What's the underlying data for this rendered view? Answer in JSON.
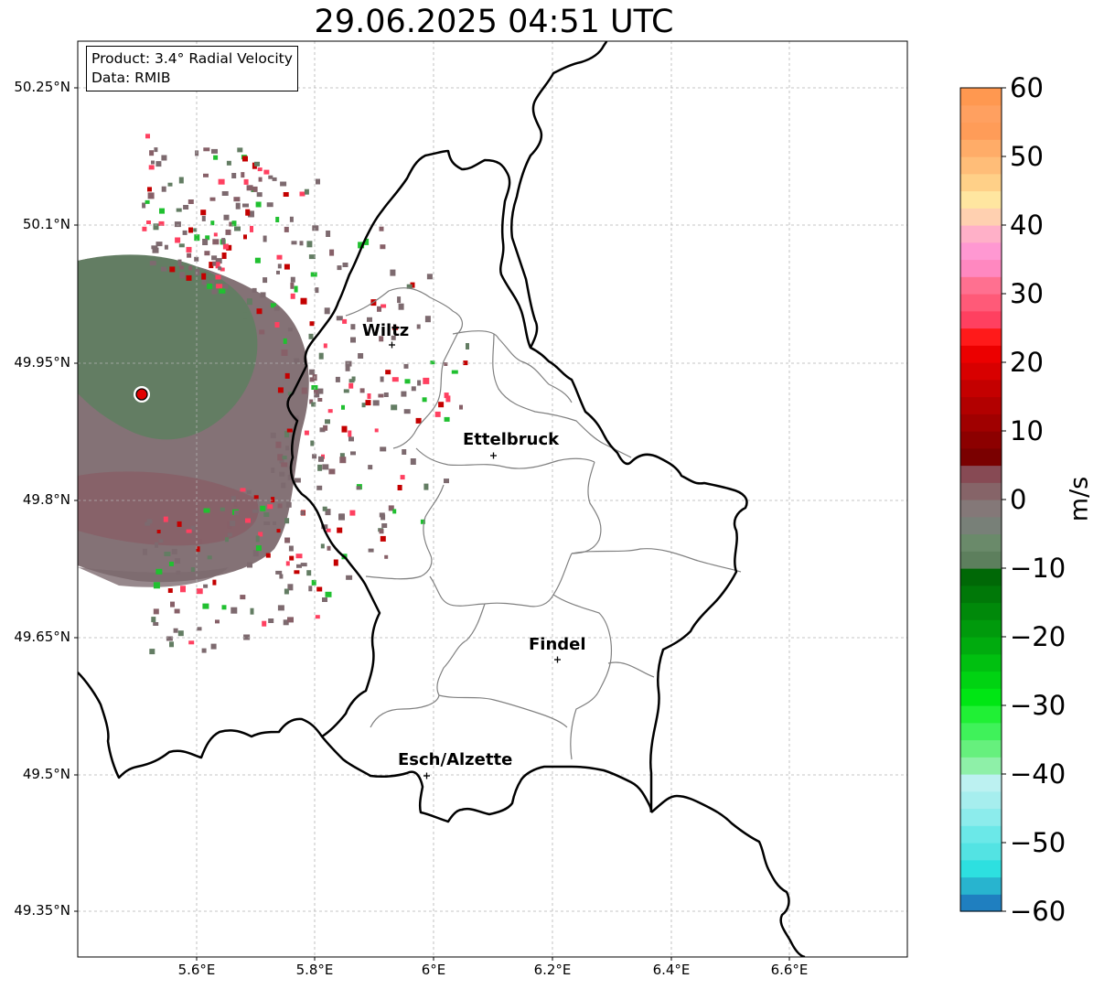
{
  "title": "29.06.2025 04:51 UTC",
  "info": {
    "product": "Product: 3.4° Radial Velocity",
    "data": "Data: RMIB"
  },
  "axes": {
    "y_ticks": [
      "50.25°N",
      "50.1°N",
      "49.95°N",
      "49.8°N",
      "49.65°N",
      "49.5°N",
      "49.35°N"
    ],
    "x_ticks": [
      "5.6°E",
      "5.8°E",
      "6°E",
      "6.2°E",
      "6.4°E",
      "6.6°E"
    ]
  },
  "cities": [
    {
      "name": "Wiltz"
    },
    {
      "name": "Ettelbruck"
    },
    {
      "name": "Findel"
    },
    {
      "name": "Esch/Alzette"
    }
  ],
  "colorbar": {
    "unit": "m/s",
    "ticks": [
      "60",
      "50",
      "40",
      "30",
      "20",
      "10",
      "0",
      "−10",
      "−20",
      "−30",
      "−40",
      "−50",
      "−60"
    ],
    "range": [
      -60,
      60
    ],
    "colors": [
      "#1f7fc0",
      "#28b4cf",
      "#2de0e0",
      "#53e3e3",
      "#6be8e8",
      "#8cecec",
      "#a6eeee",
      "#bcf1f1",
      "#8ef0a8",
      "#66f07d",
      "#3ff25a",
      "#20f035",
      "#00e614",
      "#00d312",
      "#00c010",
      "#00ab0e",
      "#009a0c",
      "#00890a",
      "#007808",
      "#006806",
      "#5d7f5d",
      "#6a8a6a",
      "#788078",
      "#847878",
      "#866468",
      "#874a54",
      "#7a0000",
      "#8c0000",
      "#a00000",
      "#b20000",
      "#c40000",
      "#d80000",
      "#ec0000",
      "#ff1a1a",
      "#ff4060",
      "#ff5a78",
      "#ff7090",
      "#ff88c0",
      "#ff98d2",
      "#ffb0c8",
      "#ffd0b0",
      "#ffe6a0",
      "#ffd088",
      "#ffbd78",
      "#ffac68",
      "#ff9c58",
      "#ffa060",
      "#ff9850"
    ]
  },
  "colors": {
    "border": "#000000",
    "canton": "#808080",
    "radar_site": "#e00000",
    "grid": "#b0b0b0"
  }
}
